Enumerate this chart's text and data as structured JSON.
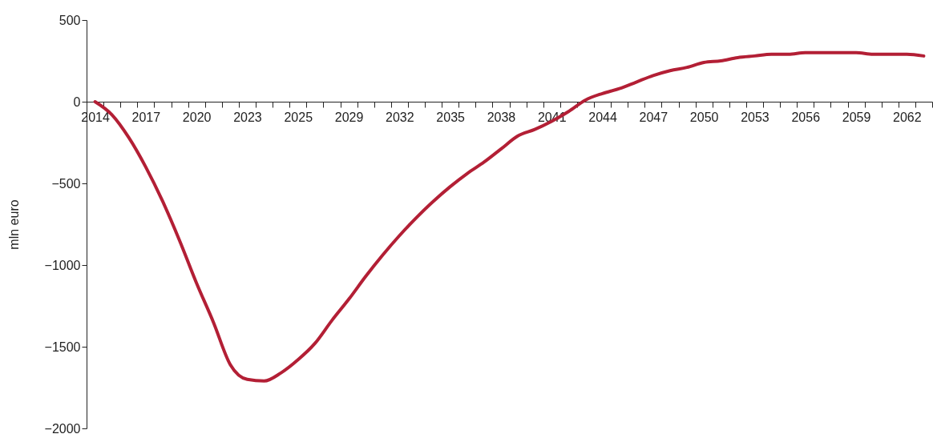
{
  "chart_data": {
    "type": "line",
    "ylabel": "mln euro",
    "categories": [
      "2014",
      null,
      null,
      "2017",
      null,
      null,
      "2020",
      null,
      null,
      "2023",
      null,
      null,
      "2025",
      null,
      null,
      "2029",
      null,
      null,
      "2032",
      null,
      null,
      "2035",
      null,
      null,
      "2038",
      null,
      null,
      "2041",
      null,
      null,
      "2044",
      null,
      null,
      "2047",
      null,
      null,
      "2050",
      null,
      null,
      "2053",
      null,
      null,
      "2056",
      null,
      null,
      "2059",
      null,
      null,
      "2062",
      null
    ],
    "series": [
      {
        "color": "#b31f35",
        "values": [
          0,
          -80,
          -220,
          -400,
          -610,
          -850,
          -1110,
          -1350,
          -1610,
          -1700,
          -1710,
          -1660,
          -1580,
          -1480,
          -1340,
          -1210,
          -1070,
          -940,
          -820,
          -710,
          -610,
          -520,
          -440,
          -370,
          -290,
          -210,
          -170,
          -120,
          -60,
          10,
          50,
          80,
          120,
          160,
          190,
          210,
          240,
          250,
          270,
          280,
          290,
          290,
          300,
          300,
          300,
          300,
          290,
          290,
          290,
          280
        ]
      }
    ],
    "ylim": [
      -2000,
      500
    ],
    "yticks": [
      -2000,
      -1500,
      -1000,
      -500,
      0,
      500
    ],
    "grid": false
  }
}
